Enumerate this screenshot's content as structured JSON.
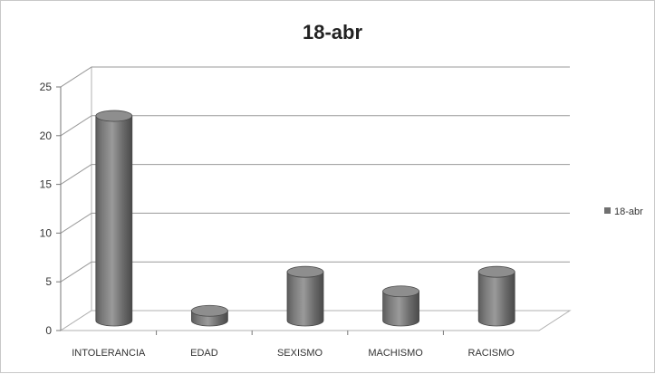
{
  "chart_data": {
    "type": "bar",
    "title": "18-abr",
    "categories": [
      "INTOLERANCIA",
      "EDAD",
      "SEXISMO",
      "MACHISMO",
      "RACISMO"
    ],
    "series": [
      {
        "name": "18-abr",
        "values": [
          21,
          1,
          5,
          3,
          5
        ],
        "color": "#808080"
      }
    ],
    "ylim": [
      0,
      25
    ],
    "yticks": [
      0,
      5,
      10,
      15,
      20,
      25
    ],
    "grid": true,
    "legend": "right",
    "style": "3d-cylinder"
  }
}
